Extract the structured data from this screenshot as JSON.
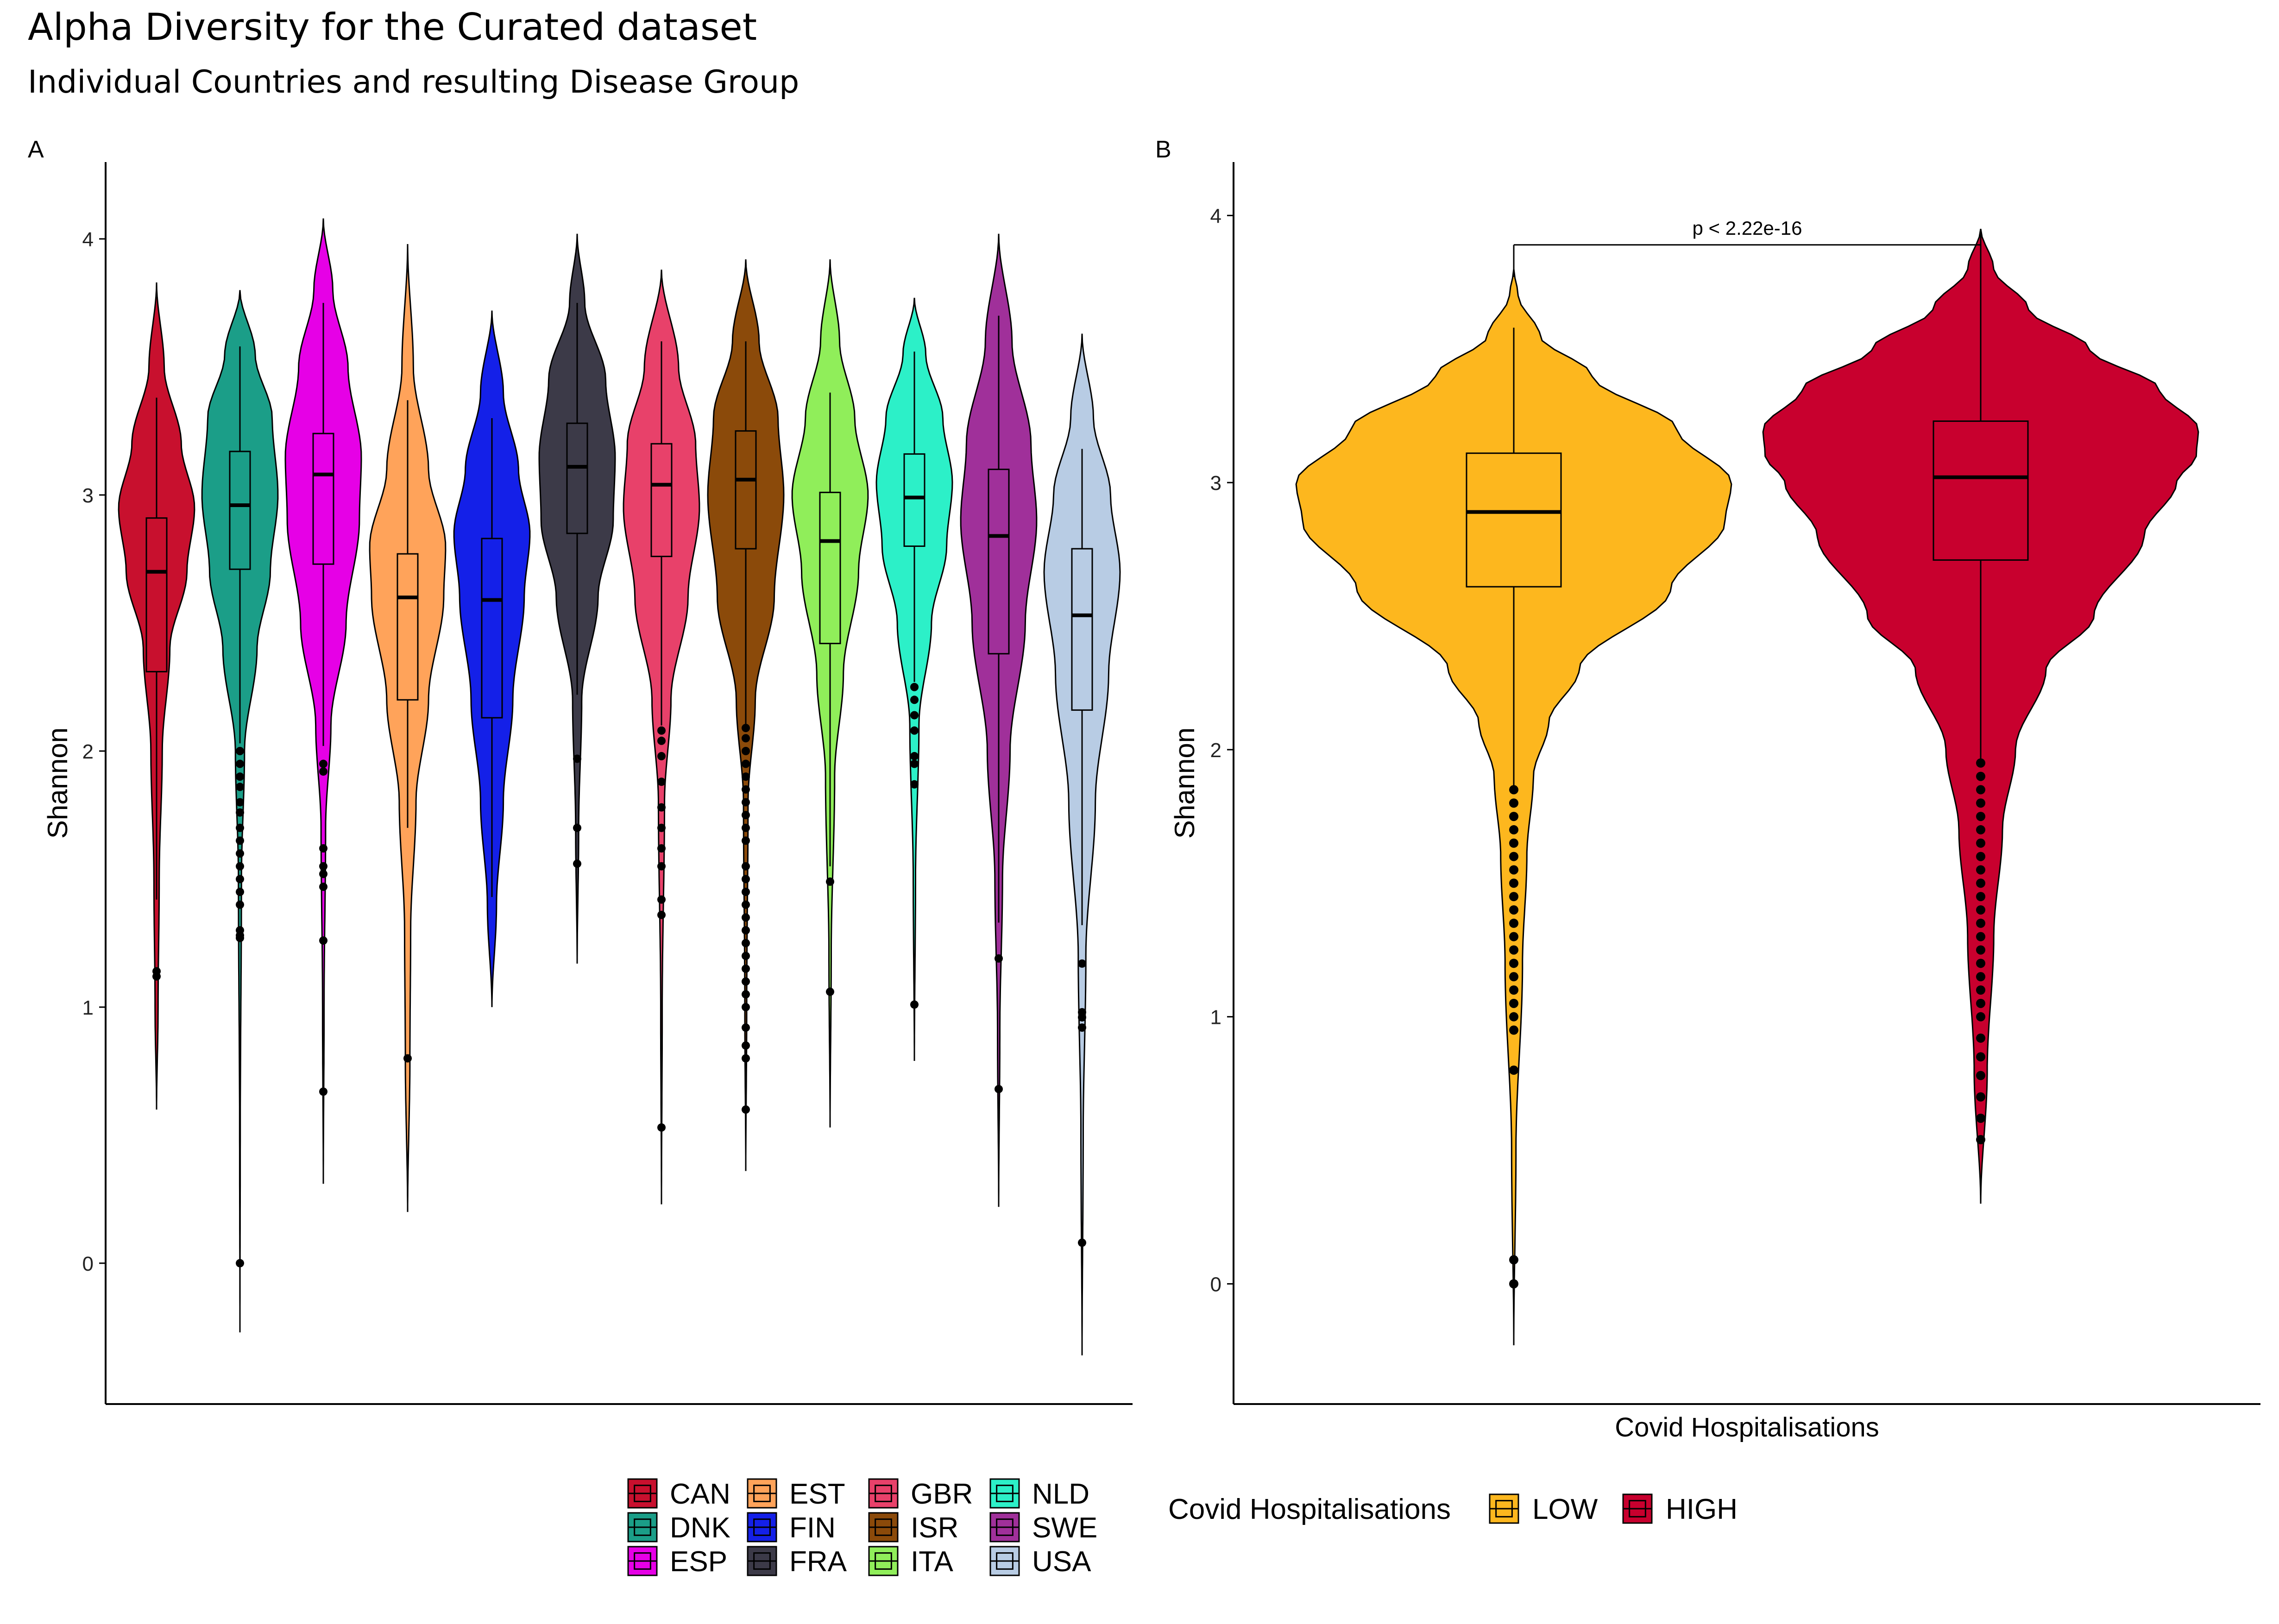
{
  "title": "Alpha Diversity for the Curated dataset",
  "subtitle": "Individual Countries and resulting Disease Group",
  "chart_data": [
    {
      "type": "violin",
      "panel_label": "A",
      "xlabel": "",
      "ylabel": "Shannon",
      "ylim": [
        -0.55,
        4.3
      ],
      "yticks": [
        0,
        1,
        2,
        3,
        4
      ],
      "grid": false,
      "legend": {
        "position": "bottom",
        "columns": 4,
        "entries": [
          "CAN",
          "DNK",
          "ESP",
          "EST",
          "FIN",
          "FRA",
          "GBR",
          "ISR",
          "ITA",
          "NLD",
          "SWE",
          "USA"
        ]
      },
      "series": [
        {
          "name": "CAN",
          "color": "#C8102E",
          "min": 0.6,
          "max": 3.83,
          "q1": 2.31,
          "median": 2.7,
          "q3": 2.91,
          "whisker_low": 1.42,
          "whisker_high": 3.38,
          "outliers": [
            1.12,
            1.14
          ],
          "profile": [
            [
              0.6,
              0
            ],
            [
              1.0,
              0.04
            ],
            [
              1.5,
              0.07
            ],
            [
              2.0,
              0.15
            ],
            [
              2.4,
              0.35
            ],
            [
              2.7,
              0.8
            ],
            [
              2.95,
              1.0
            ],
            [
              3.2,
              0.65
            ],
            [
              3.5,
              0.2
            ],
            [
              3.83,
              0
            ]
          ]
        },
        {
          "name": "DNK",
          "color": "#1B9E88",
          "min": -0.27,
          "max": 3.8,
          "q1": 2.71,
          "median": 2.96,
          "q3": 3.17,
          "whisker_low": 2.03,
          "whisker_high": 3.58,
          "outliers": [
            0.0,
            1.27,
            1.28,
            1.3,
            1.4,
            1.45,
            1.5,
            1.55,
            1.6,
            1.65,
            1.7,
            1.76,
            1.8,
            1.86,
            1.9,
            1.95,
            2.0
          ],
          "profile": [
            [
              -0.27,
              0
            ],
            [
              0.5,
              0.008
            ],
            [
              1.5,
              0.04
            ],
            [
              2.0,
              0.12
            ],
            [
              2.4,
              0.45
            ],
            [
              2.7,
              0.8
            ],
            [
              3.0,
              1.0
            ],
            [
              3.3,
              0.85
            ],
            [
              3.55,
              0.4
            ],
            [
              3.8,
              0
            ]
          ]
        },
        {
          "name": "ESP",
          "color": "#E600E6",
          "min": 0.31,
          "max": 4.08,
          "q1": 2.73,
          "median": 3.08,
          "q3": 3.24,
          "whisker_low": 2.02,
          "whisker_high": 3.75,
          "outliers": [
            0.67,
            1.26,
            1.47,
            1.52,
            1.55,
            1.62,
            1.92,
            1.95
          ],
          "profile": [
            [
              0.31,
              0
            ],
            [
              1.0,
              0.02
            ],
            [
              1.7,
              0.06
            ],
            [
              2.1,
              0.2
            ],
            [
              2.5,
              0.6
            ],
            [
              2.9,
              0.95
            ],
            [
              3.15,
              1.0
            ],
            [
              3.5,
              0.65
            ],
            [
              3.8,
              0.25
            ],
            [
              4.08,
              0
            ]
          ]
        },
        {
          "name": "EST",
          "color": "#FFA35A",
          "min": 0.2,
          "max": 3.98,
          "q1": 2.2,
          "median": 2.6,
          "q3": 2.77,
          "whisker_low": 1.7,
          "whisker_high": 3.37,
          "outliers": [
            0.8
          ],
          "profile": [
            [
              0.2,
              0
            ],
            [
              0.8,
              0.06
            ],
            [
              1.3,
              0.08
            ],
            [
              1.8,
              0.22
            ],
            [
              2.2,
              0.55
            ],
            [
              2.6,
              0.95
            ],
            [
              2.8,
              1.0
            ],
            [
              3.1,
              0.55
            ],
            [
              3.5,
              0.15
            ],
            [
              3.98,
              0
            ]
          ]
        },
        {
          "name": "FIN",
          "color": "#1420E8",
          "min": 1.0,
          "max": 3.72,
          "q1": 2.13,
          "median": 2.59,
          "q3": 2.83,
          "whisker_low": 1.43,
          "whisker_high": 3.3,
          "outliers": [],
          "profile": [
            [
              1.0,
              0
            ],
            [
              1.4,
              0.12
            ],
            [
              1.8,
              0.3
            ],
            [
              2.2,
              0.55
            ],
            [
              2.6,
              0.85
            ],
            [
              2.85,
              1.0
            ],
            [
              3.1,
              0.7
            ],
            [
              3.4,
              0.3
            ],
            [
              3.72,
              0
            ]
          ]
        },
        {
          "name": "FRA",
          "color": "#3C3A48",
          "min": 1.17,
          "max": 4.02,
          "q1": 2.85,
          "median": 3.11,
          "q3": 3.28,
          "whisker_low": 2.22,
          "whisker_high": 3.75,
          "outliers": [
            1.56,
            1.7,
            1.97
          ],
          "profile": [
            [
              1.17,
              0
            ],
            [
              1.7,
              0.04
            ],
            [
              2.2,
              0.12
            ],
            [
              2.6,
              0.55
            ],
            [
              2.9,
              0.95
            ],
            [
              3.15,
              1.0
            ],
            [
              3.45,
              0.75
            ],
            [
              3.75,
              0.2
            ],
            [
              4.02,
              0
            ]
          ]
        },
        {
          "name": "GBR",
          "color": "#E8416A",
          "min": 0.23,
          "max": 3.88,
          "q1": 2.76,
          "median": 3.04,
          "q3": 3.2,
          "whisker_low": 2.1,
          "whisker_high": 3.6,
          "outliers": [
            0.53,
            1.36,
            1.42,
            1.55,
            1.62,
            1.7,
            1.78,
            1.88,
            1.98,
            2.04,
            2.08
          ],
          "profile": [
            [
              0.23,
              0
            ],
            [
              1.0,
              0.02
            ],
            [
              1.8,
              0.08
            ],
            [
              2.2,
              0.25
            ],
            [
              2.6,
              0.7
            ],
            [
              2.95,
              1.0
            ],
            [
              3.2,
              0.9
            ],
            [
              3.5,
              0.45
            ],
            [
              3.88,
              0
            ]
          ]
        },
        {
          "name": "ISR",
          "color": "#8B4A0A",
          "min": 0.36,
          "max": 3.92,
          "q1": 2.79,
          "median": 3.06,
          "q3": 3.25,
          "whisker_low": 2.1,
          "whisker_high": 3.6,
          "outliers": [
            0.6,
            0.8,
            0.85,
            0.92,
            1.0,
            1.05,
            1.1,
            1.15,
            1.2,
            1.25,
            1.3,
            1.35,
            1.4,
            1.45,
            1.5,
            1.55,
            1.65,
            1.7,
            1.75,
            1.8,
            1.85,
            1.9,
            1.95,
            2.0,
            2.05,
            2.09
          ],
          "profile": [
            [
              0.36,
              0
            ],
            [
              1.0,
              0.025
            ],
            [
              1.8,
              0.06
            ],
            [
              2.2,
              0.25
            ],
            [
              2.6,
              0.75
            ],
            [
              3.0,
              1.0
            ],
            [
              3.3,
              0.85
            ],
            [
              3.6,
              0.35
            ],
            [
              3.92,
              0
            ]
          ]
        },
        {
          "name": "ITA",
          "color": "#90EE5A",
          "min": 0.53,
          "max": 3.92,
          "q1": 2.42,
          "median": 2.82,
          "q3": 3.01,
          "whisker_low": 1.55,
          "whisker_high": 3.4,
          "outliers": [
            1.06,
            1.49
          ],
          "profile": [
            [
              0.53,
              0
            ],
            [
              1.2,
              0.03
            ],
            [
              1.9,
              0.12
            ],
            [
              2.3,
              0.35
            ],
            [
              2.7,
              0.75
            ],
            [
              3.0,
              1.0
            ],
            [
              3.3,
              0.65
            ],
            [
              3.6,
              0.25
            ],
            [
              3.92,
              0
            ]
          ]
        },
        {
          "name": "NLD",
          "color": "#2CF0C8",
          "min": 0.79,
          "max": 3.77,
          "q1": 2.8,
          "median": 2.99,
          "q3": 3.16,
          "whisker_low": 2.27,
          "whisker_high": 3.56,
          "outliers": [
            1.01,
            1.87,
            1.95,
            1.98,
            2.08,
            2.14,
            2.2,
            2.25
          ],
          "profile": [
            [
              0.79,
              0
            ],
            [
              1.5,
              0.03
            ],
            [
              2.1,
              0.12
            ],
            [
              2.5,
              0.45
            ],
            [
              2.8,
              0.85
            ],
            [
              3.05,
              1.0
            ],
            [
              3.3,
              0.75
            ],
            [
              3.55,
              0.3
            ],
            [
              3.77,
              0
            ]
          ]
        },
        {
          "name": "SWE",
          "color": "#A0309A",
          "min": 0.22,
          "max": 4.02,
          "q1": 2.38,
          "median": 2.84,
          "q3": 3.1,
          "whisker_low": 1.33,
          "whisker_high": 3.7,
          "outliers": [
            0.68,
            1.19
          ],
          "profile": [
            [
              0.22,
              0
            ],
            [
              0.9,
              0.03
            ],
            [
              1.5,
              0.1
            ],
            [
              2.0,
              0.3
            ],
            [
              2.5,
              0.7
            ],
            [
              2.9,
              1.0
            ],
            [
              3.2,
              0.85
            ],
            [
              3.6,
              0.35
            ],
            [
              4.02,
              0
            ]
          ]
        },
        {
          "name": "USA",
          "color": "#B8CCE4",
          "min": -0.36,
          "max": 3.63,
          "q1": 2.16,
          "median": 2.53,
          "q3": 2.79,
          "whisker_low": 1.32,
          "whisker_high": 3.18,
          "outliers": [
            0.08,
            0.92,
            0.96,
            0.98,
            1.17
          ],
          "profile": [
            [
              -0.36,
              0
            ],
            [
              0.5,
              0.03
            ],
            [
              1.2,
              0.1
            ],
            [
              1.8,
              0.35
            ],
            [
              2.3,
              0.7
            ],
            [
              2.7,
              1.0
            ],
            [
              3.0,
              0.75
            ],
            [
              3.3,
              0.3
            ],
            [
              3.63,
              0
            ]
          ]
        }
      ]
    },
    {
      "type": "violin",
      "panel_label": "B",
      "xlabel": "Covid Hospitalisations",
      "ylabel": "Shannon",
      "ylim": [
        -0.45,
        4.2
      ],
      "yticks": [
        0,
        1,
        2,
        3,
        4
      ],
      "grid": false,
      "annotation": "p < 2.22e-16",
      "legend": {
        "position": "bottom",
        "title": "Covid Hospitalisations",
        "entries": [
          "LOW",
          "HIGH"
        ]
      },
      "series": [
        {
          "name": "LOW",
          "color": "#FDB71E",
          "min": -0.23,
          "max": 3.8,
          "q1": 2.61,
          "median": 2.89,
          "q3": 3.11,
          "whisker_low": 1.86,
          "whisker_high": 3.58,
          "outliers": [
            0.0,
            0.09,
            0.8,
            0.95,
            1.0,
            1.05,
            1.1,
            1.15,
            1.2,
            1.25,
            1.3,
            1.35,
            1.4,
            1.45,
            1.5,
            1.55,
            1.6,
            1.65,
            1.7,
            1.75,
            1.8,
            1.85
          ],
          "profile": [
            [
              -0.23,
              0
            ],
            [
              0.5,
              0.01
            ],
            [
              1.2,
              0.04
            ],
            [
              1.6,
              0.06
            ],
            [
              1.9,
              0.09
            ],
            [
              2.1,
              0.16
            ],
            [
              2.3,
              0.3
            ],
            [
              2.6,
              0.72
            ],
            [
              2.85,
              0.97
            ],
            [
              3.0,
              1.0
            ],
            [
              3.2,
              0.75
            ],
            [
              3.4,
              0.36
            ],
            [
              3.55,
              0.12
            ],
            [
              3.7,
              0.02
            ],
            [
              3.8,
              0
            ]
          ]
        },
        {
          "name": "HIGH",
          "color": "#C8002E",
          "min": 0.3,
          "max": 3.95,
          "q1": 2.71,
          "median": 3.02,
          "q3": 3.23,
          "whisker_low": 1.95,
          "whisker_high": 3.95,
          "outliers": [
            0.54,
            0.62,
            0.7,
            0.78,
            0.85,
            0.92,
            1.0,
            1.05,
            1.1,
            1.15,
            1.2,
            1.25,
            1.3,
            1.35,
            1.4,
            1.45,
            1.5,
            1.55,
            1.6,
            1.65,
            1.7,
            1.75,
            1.8,
            1.85,
            1.9,
            1.95
          ],
          "profile": [
            [
              0.3,
              0
            ],
            [
              0.8,
              0.03
            ],
            [
              1.3,
              0.06
            ],
            [
              1.7,
              0.1
            ],
            [
              2.0,
              0.16
            ],
            [
              2.3,
              0.3
            ],
            [
              2.5,
              0.52
            ],
            [
              2.8,
              0.75
            ],
            [
              3.0,
              0.9
            ],
            [
              3.1,
              0.99
            ],
            [
              3.2,
              1.0
            ],
            [
              3.35,
              0.82
            ],
            [
              3.5,
              0.5
            ],
            [
              3.65,
              0.22
            ],
            [
              3.8,
              0.06
            ],
            [
              3.95,
              0
            ]
          ]
        }
      ]
    }
  ]
}
